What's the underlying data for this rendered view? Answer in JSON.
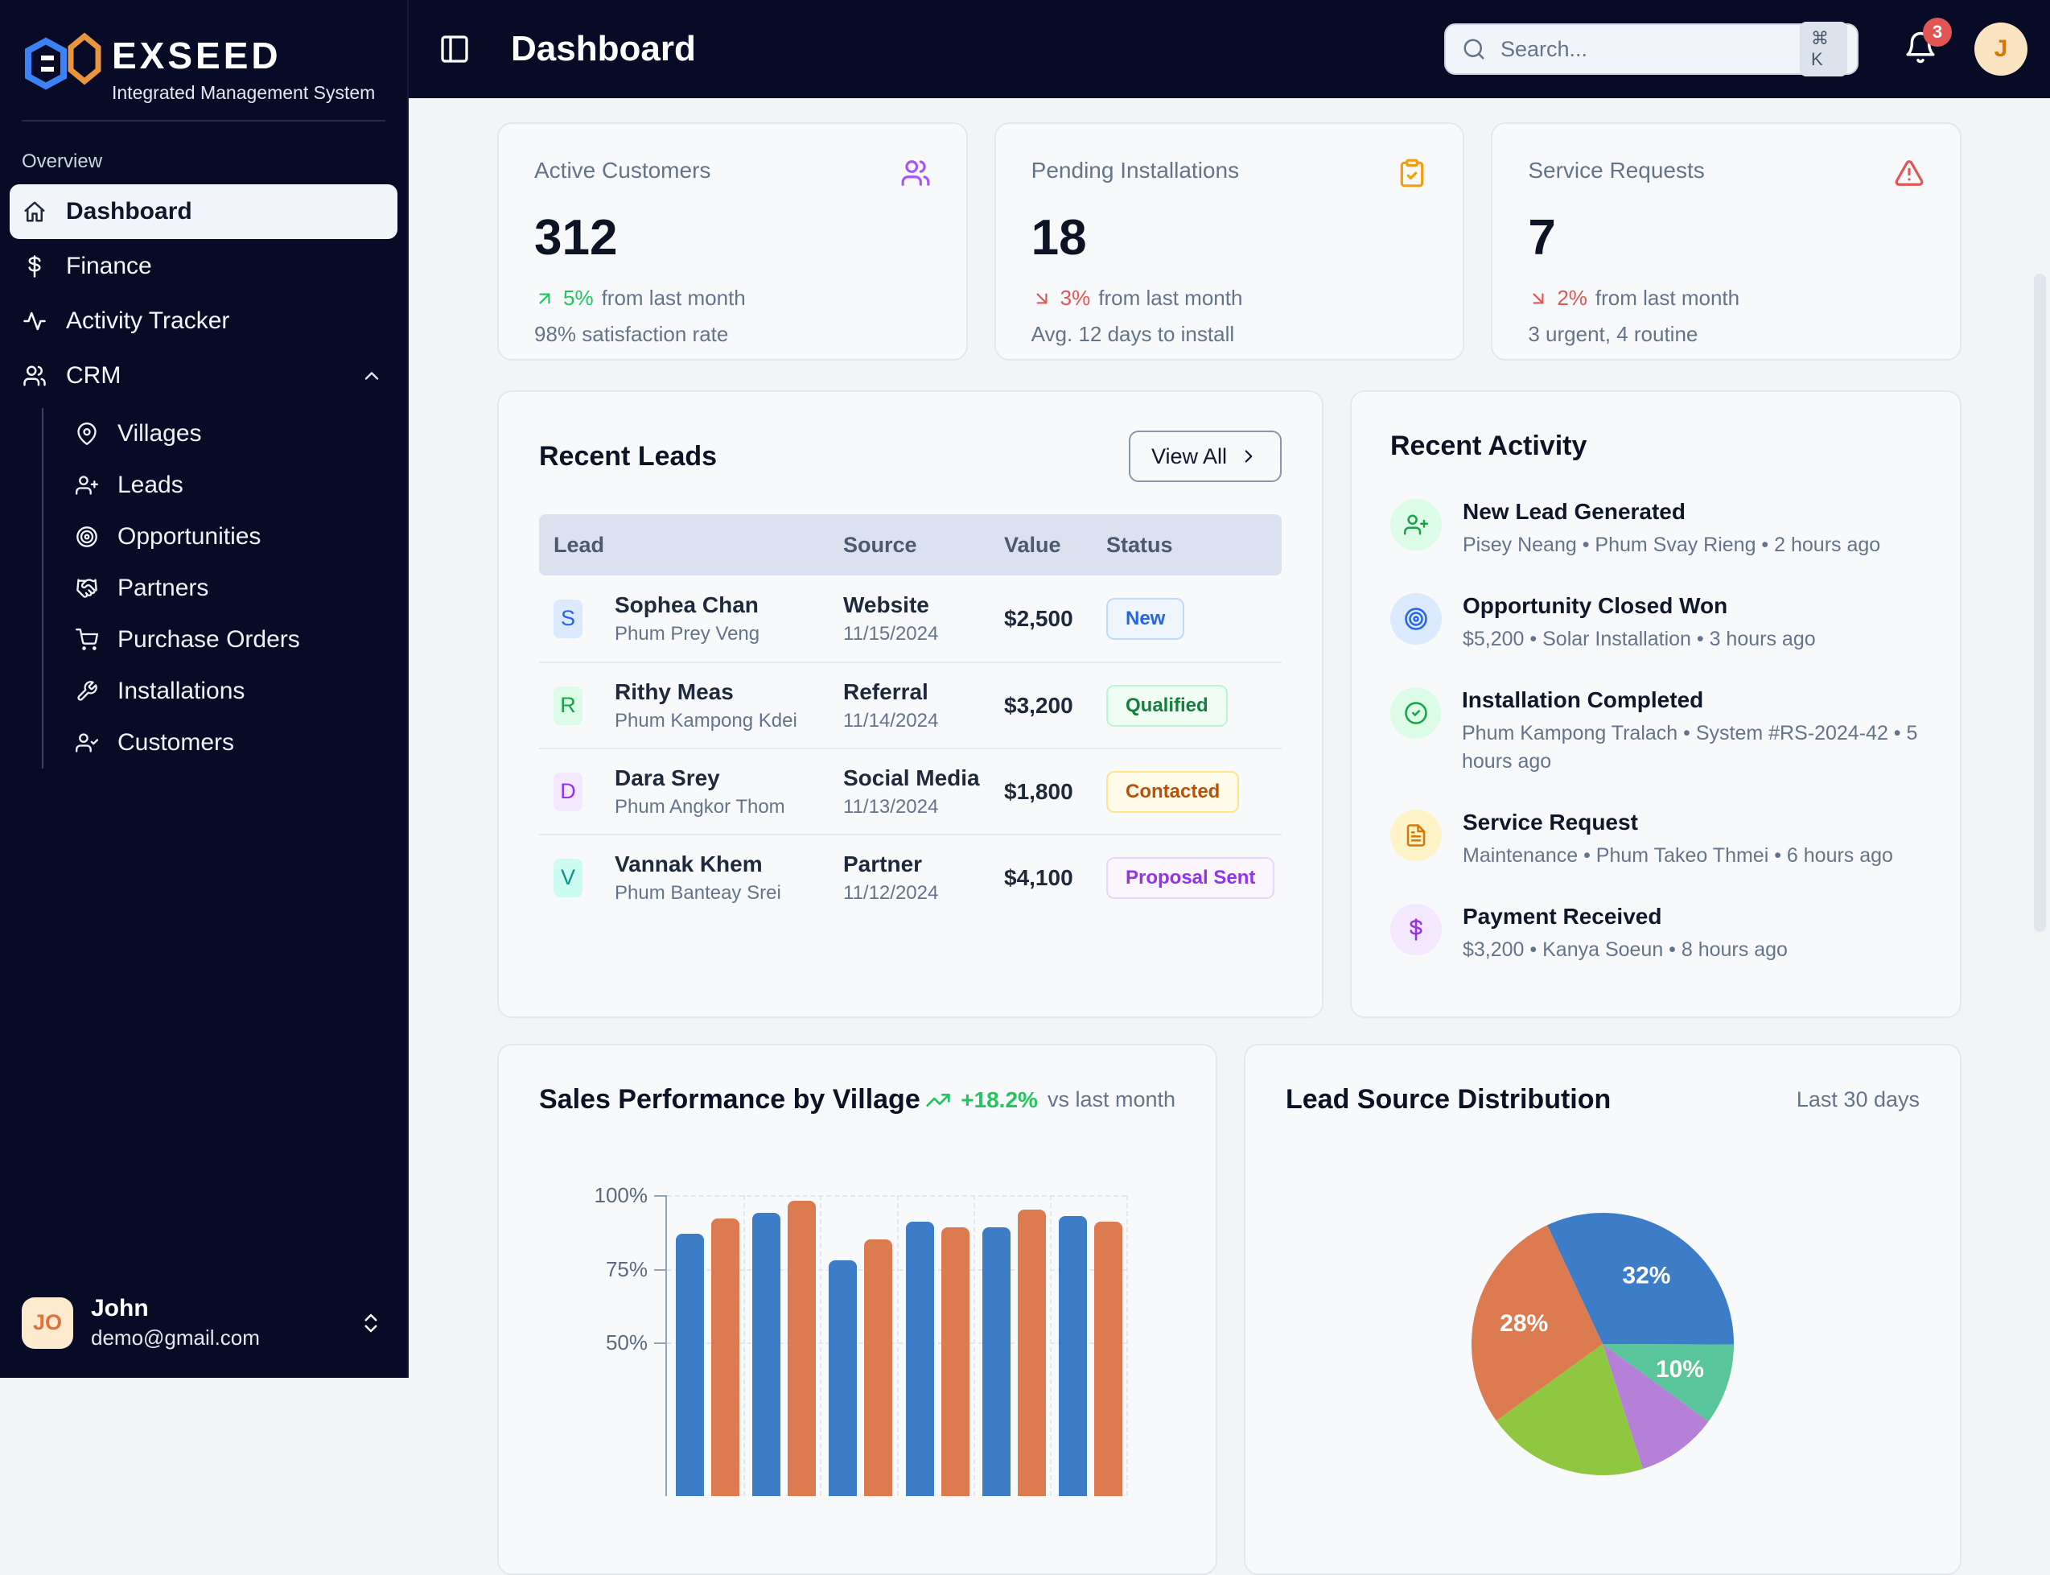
{
  "brand": {
    "name": "EXSEED",
    "subtitle": "Integrated Management System"
  },
  "sidebar": {
    "section_label": "Overview",
    "items": [
      {
        "label": "Dashboard",
        "icon": "home",
        "active": true
      },
      {
        "label": "Finance",
        "icon": "dollar",
        "active": false
      },
      {
        "label": "Activity Tracker",
        "icon": "activity",
        "active": false
      },
      {
        "label": "CRM",
        "icon": "users",
        "active": false,
        "expanded": true,
        "children": [
          {
            "label": "Villages",
            "icon": "map-pin"
          },
          {
            "label": "Leads",
            "icon": "user-plus"
          },
          {
            "label": "Opportunities",
            "icon": "target"
          },
          {
            "label": "Partners",
            "icon": "handshake"
          },
          {
            "label": "Purchase Orders",
            "icon": "cart"
          },
          {
            "label": "Installations",
            "icon": "wrench"
          },
          {
            "label": "Customers",
            "icon": "user-check"
          }
        ]
      }
    ],
    "user": {
      "initials": "JO",
      "name": "John",
      "email": "demo@gmail.com"
    }
  },
  "header": {
    "title": "Dashboard",
    "search_placeholder": "Search...",
    "search_shortcut": "⌘ K",
    "notification_count": "3",
    "avatar_initial": "J"
  },
  "stats": [
    {
      "label": "Active Customers",
      "value": "312",
      "icon": "users",
      "icon_color": "#a855f7",
      "direction": "up",
      "change": "5%",
      "change_text": "from last month",
      "secondary": "98% satisfaction rate"
    },
    {
      "label": "Pending Installations",
      "value": "18",
      "icon": "clipboard-check",
      "icon_color": "#f59e0b",
      "direction": "down",
      "change": "3%",
      "change_text": "from last month",
      "secondary": "Avg. 12 days to install"
    },
    {
      "label": "Service Requests",
      "value": "7",
      "icon": "alert-triangle",
      "icon_color": "#e25555",
      "direction": "down",
      "change": "2%",
      "change_text": "from last month",
      "secondary": "3 urgent, 4 routine"
    }
  ],
  "recent_leads": {
    "title": "Recent Leads",
    "view_all_label": "View All",
    "columns": [
      "Lead",
      "Source",
      "Value",
      "Status"
    ],
    "rows": [
      {
        "initial": "S",
        "name": "Sophea Chan",
        "village": "Phum Prey Veng",
        "source": "Website",
        "date": "11/15/2024",
        "value": "$2,500",
        "status": "New"
      },
      {
        "initial": "R",
        "name": "Rithy Meas",
        "village": "Phum Kampong Kdei",
        "source": "Referral",
        "date": "11/14/2024",
        "value": "$3,200",
        "status": "Qualified"
      },
      {
        "initial": "D",
        "name": "Dara Srey",
        "village": "Phum Angkor Thom",
        "source": "Social Media",
        "date": "11/13/2024",
        "value": "$1,800",
        "status": "Contacted"
      },
      {
        "initial": "V",
        "name": "Vannak Khem",
        "village": "Phum Banteay Srei",
        "source": "Partner",
        "date": "11/12/2024",
        "value": "$4,100",
        "status": "Proposal Sent"
      }
    ]
  },
  "recent_activity": {
    "title": "Recent Activity",
    "items": [
      {
        "title": "New Lead Generated",
        "detail": "Pisey Neang • Phum Svay Rieng • 2 hours ago",
        "icon": "user-plus",
        "scheme": "green"
      },
      {
        "title": "Opportunity Closed Won",
        "detail": "$5,200 • Solar Installation • 3 hours ago",
        "icon": "target",
        "scheme": "blue"
      },
      {
        "title": "Installation Completed",
        "detail": "Phum Kampong Tralach • System #RS-2024-42 • 5 hours ago",
        "icon": "check-circle",
        "scheme": "green"
      },
      {
        "title": "Service Request",
        "detail": "Maintenance • Phum Takeo Thmei • 6 hours ago",
        "icon": "file-text",
        "scheme": "amber"
      },
      {
        "title": "Payment Received",
        "detail": "$3,200 • Kanya Soeun • 8 hours ago",
        "icon": "dollar",
        "scheme": "purple"
      }
    ]
  },
  "sales_chart": {
    "title": "Sales Performance by Village",
    "change_badge": "+18.2%",
    "change_suffix": "vs last month"
  },
  "pie_chart": {
    "title": "Lead Source Distribution",
    "period": "Last 30 days"
  },
  "chart_data": [
    {
      "type": "bar",
      "title": "Sales Performance by Village",
      "xlabel": "",
      "ylabel": "",
      "ylim": [
        0,
        100
      ],
      "yticks": [
        "100%",
        "75%",
        "50%"
      ],
      "grid": "dashed",
      "categories": [
        "",
        "",
        "",
        "",
        "",
        ""
      ],
      "series": [
        {
          "name": "",
          "color": "#3d7dc8",
          "values": [
            87,
            94,
            78,
            91,
            89,
            93
          ]
        },
        {
          "name": "",
          "color": "#dc7a50",
          "values": [
            92,
            98,
            85,
            89,
            95,
            91
          ]
        }
      ]
    },
    {
      "type": "pie",
      "title": "Lead Source Distribution",
      "period": "Last 30 days",
      "start_angle_deg": -25,
      "direction": "clockwise",
      "slices": [
        {
          "label": "32%",
          "value": 32,
          "color": "#3d7dc8"
        },
        {
          "label": "10%",
          "value": 10,
          "color": "#58c59b"
        },
        {
          "label": "",
          "value": 10,
          "color": "#b580d8"
        },
        {
          "label": "",
          "value": 20,
          "color": "#8fc741"
        },
        {
          "label": "28%",
          "value": 28,
          "color": "#dc7a50"
        }
      ]
    }
  ]
}
